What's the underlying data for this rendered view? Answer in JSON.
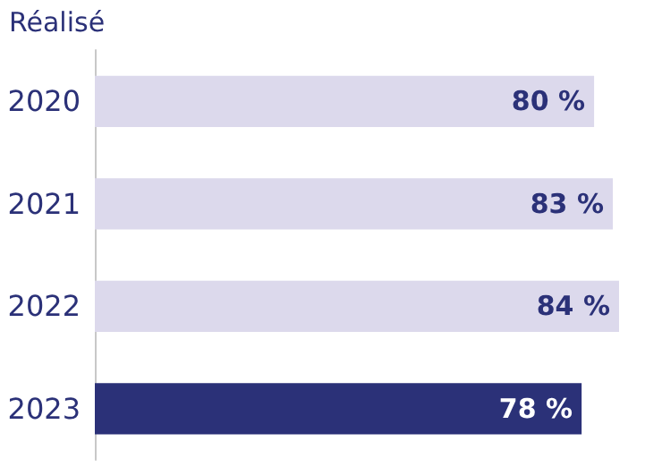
{
  "chart_data": {
    "type": "bar",
    "orientation": "horizontal",
    "title": "Réalisé",
    "categories": [
      "2020",
      "2021",
      "2022",
      "2023"
    ],
    "values": [
      80,
      83,
      84,
      78
    ],
    "colors": [
      "#dcd9ec",
      "#dcd9ec",
      "#dcd9ec",
      "#2b3178"
    ],
    "value_labels": [
      "80 %",
      "83 %",
      "84 %",
      "78 %"
    ],
    "tick_labels": "y"
  }
}
